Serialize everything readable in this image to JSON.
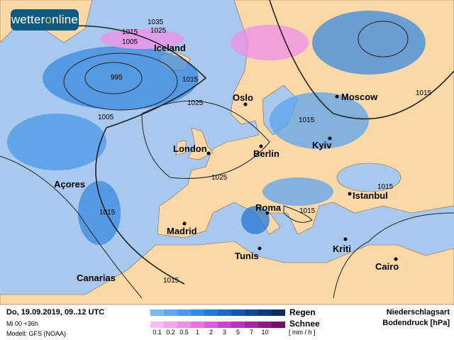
{
  "brand": {
    "logo_text_a": "wetter",
    "logo_text_o": "o",
    "logo_text_b": "nline"
  },
  "map": {
    "colors": {
      "ocean": "#a8c8ee",
      "land": "#fbd8a8",
      "rain": "#2f7fdc",
      "snow": "#f08ee8"
    },
    "cities": [
      "Iceland",
      "Oslo",
      "Moscow",
      "London",
      "Berlin",
      "Kyiv",
      "Açores",
      "Istanbul",
      "Madrid",
      "Roma",
      "Kriti",
      "Tunis",
      "Cairo",
      "Canarias"
    ],
    "isobars": [
      "1035",
      "1025",
      "1015",
      "1005",
      "995",
      "1015",
      "1025",
      "1005",
      "1015",
      "1015",
      "1025",
      "1015",
      "1015",
      "1015",
      "1015"
    ]
  },
  "legend": {
    "datetime": "Do, 19.09.2019, 09..12 UTC",
    "run": "Mi 00 +36h",
    "model": "Modell: GFS (NOAA)",
    "rain_label": "Regen",
    "snow_label": "Schnee",
    "unit": "[ mm / h ]",
    "ticks": [
      "0.1",
      "0.2",
      "0.5",
      "1",
      "2",
      "3",
      "5",
      "7",
      "10"
    ],
    "rain_colors": [
      "#7ab8f2",
      "#62a8ee",
      "#4a98e8",
      "#3488e0",
      "#2678d2",
      "#1c68c0",
      "#1558aa",
      "#104892",
      "#0c3a78",
      "#082c5e"
    ],
    "snow_colors": [
      "#f9bdf4",
      "#f5a5ef",
      "#f08ee8",
      "#ea74e0",
      "#e05ad8",
      "#d440cc",
      "#c030b8",
      "#a8249e",
      "#8c1a86",
      "#700f6c"
    ],
    "title1": "Niederschlagsart",
    "title2": "Bodendruck [hPa]"
  }
}
